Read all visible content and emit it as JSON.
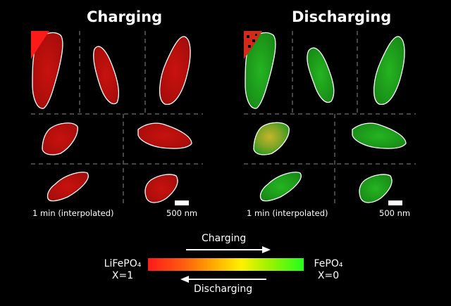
{
  "panels": {
    "charging": {
      "title": "Charging",
      "time_caption": "1 min (interpolated)",
      "scale_caption": "500 nm"
    },
    "discharging": {
      "title": "Discharging",
      "time_caption": "1 min (interpolated)",
      "scale_caption": "500 nm"
    }
  },
  "legend": {
    "charging_label": "Charging",
    "discharging_label": "Discharging",
    "left_compound": "LiFePO₄",
    "left_x": "X=1",
    "right_compound": "FePO₄",
    "right_x": "X=0"
  },
  "colors": {
    "charging_particle": "#c8120e",
    "discharging_particle": "#1ea81e",
    "outline": "#ffffff",
    "grid_line": "#8a8a8a",
    "gradient_start": "#ff1a1a",
    "gradient_end": "#22ff1a"
  }
}
